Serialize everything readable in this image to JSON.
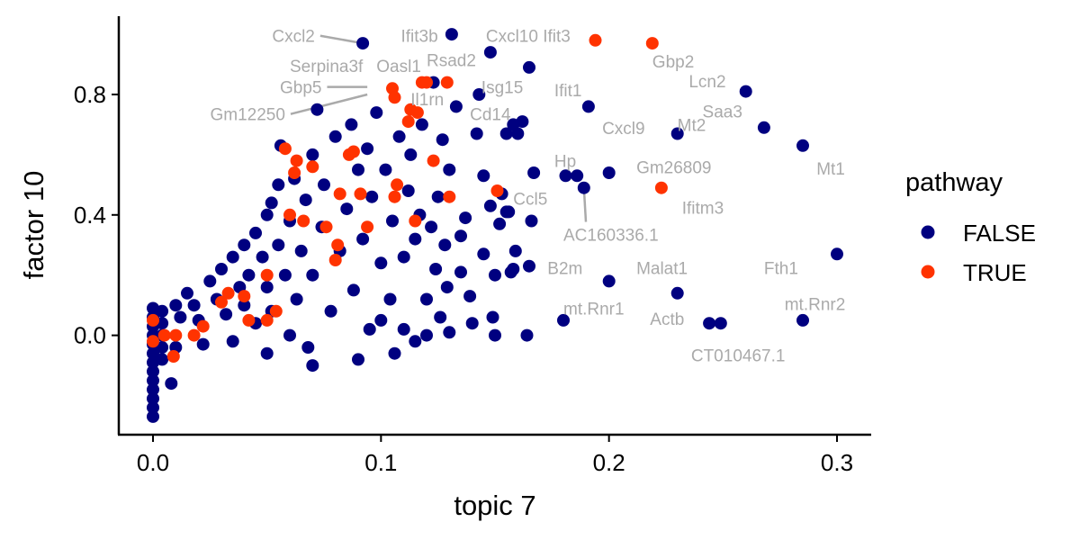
{
  "chart_data": {
    "type": "scatter",
    "xlabel": "topic 7",
    "ylabel": "factor 10",
    "xlim": [
      -0.015,
      0.315
    ],
    "ylim": [
      -0.33,
      1.06
    ],
    "x_ticks": [
      0.0,
      0.1,
      0.2,
      0.3
    ],
    "x_tick_labels": [
      "0.0",
      "0.1",
      "0.2",
      "0.3"
    ],
    "y_ticks": [
      0.0,
      0.4,
      0.8
    ],
    "y_tick_labels": [
      "0.0",
      "0.4",
      "0.8"
    ],
    "grid": false,
    "legend": {
      "title": "pathway",
      "position": "right",
      "entries": [
        {
          "label": "FALSE",
          "color": "#000080"
        },
        {
          "label": "TRUE",
          "color": "#ff3300"
        }
      ]
    },
    "series": [
      {
        "name": "FALSE",
        "color": "#000080",
        "points": [
          [
            0.0,
            0.09
          ],
          [
            0.0,
            0.06
          ],
          [
            0.0,
            0.03
          ],
          [
            0.0,
            0.0
          ],
          [
            0.0,
            -0.03
          ],
          [
            0.0,
            -0.06
          ],
          [
            0.0,
            -0.09
          ],
          [
            0.0,
            -0.12
          ],
          [
            0.0,
            -0.15
          ],
          [
            0.0,
            -0.18
          ],
          [
            0.0,
            -0.21
          ],
          [
            0.0,
            -0.24
          ],
          [
            0.0,
            -0.27
          ],
          [
            0.004,
            0.08
          ],
          [
            0.004,
            0.04
          ],
          [
            0.004,
            0.0
          ],
          [
            0.004,
            -0.04
          ],
          [
            0.004,
            -0.08
          ],
          [
            0.008,
            -0.16
          ],
          [
            0.01,
            0.1
          ],
          [
            0.01,
            -0.04
          ],
          [
            0.012,
            0.06
          ],
          [
            0.015,
            0.14
          ],
          [
            0.018,
            0.1
          ],
          [
            0.02,
            0.05
          ],
          [
            0.022,
            -0.03
          ],
          [
            0.025,
            0.18
          ],
          [
            0.028,
            0.12
          ],
          [
            0.03,
            0.22
          ],
          [
            0.032,
            0.07
          ],
          [
            0.035,
            0.26
          ],
          [
            0.035,
            -0.02
          ],
          [
            0.038,
            0.16
          ],
          [
            0.04,
            0.3
          ],
          [
            0.04,
            0.1
          ],
          [
            0.042,
            0.2
          ],
          [
            0.045,
            0.34
          ],
          [
            0.045,
            0.04
          ],
          [
            0.048,
            0.26
          ],
          [
            0.05,
            0.4
          ],
          [
            0.05,
            0.16
          ],
          [
            0.05,
            -0.06
          ],
          [
            0.052,
            0.44
          ],
          [
            0.052,
            0.08
          ],
          [
            0.055,
            0.5
          ],
          [
            0.055,
            0.3
          ],
          [
            0.056,
            0.63
          ],
          [
            0.058,
            0.2
          ],
          [
            0.06,
            0.38
          ],
          [
            0.06,
            0.0
          ],
          [
            0.062,
            0.52
          ],
          [
            0.063,
            0.12
          ],
          [
            0.065,
            0.28
          ],
          [
            0.067,
            0.45
          ],
          [
            0.068,
            -0.04
          ],
          [
            0.07,
            0.6
          ],
          [
            0.07,
            0.2
          ],
          [
            0.07,
            -0.1
          ],
          [
            0.072,
            0.75
          ],
          [
            0.074,
            0.36
          ],
          [
            0.075,
            0.5
          ],
          [
            0.078,
            0.08
          ],
          [
            0.08,
            0.66
          ],
          [
            0.082,
            0.28
          ],
          [
            0.085,
            0.42
          ],
          [
            0.087,
            0.7
          ],
          [
            0.088,
            0.15
          ],
          [
            0.09,
            0.55
          ],
          [
            0.09,
            -0.08
          ],
          [
            0.092,
            0.32
          ],
          [
            0.094,
            0.62
          ],
          [
            0.095,
            0.02
          ],
          [
            0.096,
            0.46
          ],
          [
            0.098,
            0.74
          ],
          [
            0.1,
            0.24
          ],
          [
            0.1,
            0.05
          ],
          [
            0.102,
            0.55
          ],
          [
            0.104,
            0.12
          ],
          [
            0.105,
            0.38
          ],
          [
            0.106,
            -0.06
          ],
          [
            0.108,
            0.66
          ],
          [
            0.11,
            0.26
          ],
          [
            0.11,
            0.02
          ],
          [
            0.112,
            0.48
          ],
          [
            0.113,
            0.6
          ],
          [
            0.115,
            0.32
          ],
          [
            0.115,
            -0.02
          ],
          [
            0.117,
            0.4
          ],
          [
            0.118,
            0.7
          ],
          [
            0.12,
            0.12
          ],
          [
            0.12,
            0.0
          ],
          [
            0.122,
            0.36
          ],
          [
            0.123,
            0.84
          ],
          [
            0.124,
            0.22
          ],
          [
            0.125,
            0.46
          ],
          [
            0.126,
            0.06
          ],
          [
            0.127,
            0.65
          ],
          [
            0.128,
            0.3
          ],
          [
            0.129,
            0.16
          ],
          [
            0.13,
            0.55
          ],
          [
            0.13,
            0.01
          ],
          [
            0.133,
            0.76
          ],
          [
            0.135,
            0.33
          ],
          [
            0.135,
            0.21
          ],
          [
            0.137,
            0.39
          ],
          [
            0.139,
            0.13
          ],
          [
            0.14,
            0.04
          ],
          [
            0.142,
            0.67
          ],
          [
            0.145,
            0.53
          ],
          [
            0.145,
            0.27
          ],
          [
            0.148,
            0.43
          ],
          [
            0.149,
            0.06
          ],
          [
            0.15,
            0.2
          ],
          [
            0.15,
            0.0
          ],
          [
            0.152,
            0.37
          ],
          [
            0.153,
            0.47
          ],
          [
            0.155,
            0.67
          ],
          [
            0.156,
            0.41
          ],
          [
            0.157,
            0.21
          ],
          [
            0.158,
            0.7
          ],
          [
            0.159,
            0.28
          ],
          [
            0.16,
            0.67
          ],
          [
            0.162,
            0.71
          ],
          [
            0.164,
            0.0
          ],
          [
            0.165,
            0.23
          ],
          [
            0.166,
            0.38
          ],
          [
            0.167,
            0.54
          ],
          [
            0.092,
            0.97
          ],
          [
            0.131,
            1.0
          ],
          [
            0.148,
            0.94
          ],
          [
            0.165,
            0.89
          ],
          [
            0.143,
            0.8
          ],
          [
            0.191,
            0.76
          ],
          [
            0.186,
            0.53
          ],
          [
            0.181,
            0.53
          ],
          [
            0.189,
            0.49
          ],
          [
            0.2,
            0.54
          ],
          [
            0.18,
            0.05
          ],
          [
            0.2,
            0.18
          ],
          [
            0.23,
            0.14
          ],
          [
            0.23,
            0.67
          ],
          [
            0.26,
            0.81
          ],
          [
            0.268,
            0.69
          ],
          [
            0.285,
            0.63
          ],
          [
            0.3,
            0.27
          ],
          [
            0.285,
            0.05
          ],
          [
            0.244,
            0.04
          ],
          [
            0.249,
            0.04
          ],
          [
            0.155,
            0.41
          ],
          [
            0.158,
            0.22
          ]
        ]
      },
      {
        "name": "TRUE",
        "color": "#ff3300",
        "points": [
          [
            0.0,
            0.05
          ],
          [
            0.0,
            -0.02
          ],
          [
            0.005,
            0.0
          ],
          [
            0.009,
            -0.07
          ],
          [
            0.01,
            0.0
          ],
          [
            0.018,
            0.0
          ],
          [
            0.022,
            0.03
          ],
          [
            0.03,
            0.11
          ],
          [
            0.033,
            0.14
          ],
          [
            0.04,
            0.13
          ],
          [
            0.042,
            0.05
          ],
          [
            0.05,
            0.05
          ],
          [
            0.05,
            0.2
          ],
          [
            0.054,
            0.08
          ],
          [
            0.058,
            0.62
          ],
          [
            0.06,
            0.4
          ],
          [
            0.062,
            0.54
          ],
          [
            0.063,
            0.58
          ],
          [
            0.066,
            0.38
          ],
          [
            0.07,
            0.56
          ],
          [
            0.076,
            0.36
          ],
          [
            0.08,
            0.25
          ],
          [
            0.081,
            0.3
          ],
          [
            0.082,
            0.47
          ],
          [
            0.086,
            0.6
          ],
          [
            0.088,
            0.61
          ],
          [
            0.091,
            0.47
          ],
          [
            0.094,
            0.36
          ],
          [
            0.105,
            0.82
          ],
          [
            0.106,
            0.79
          ],
          [
            0.106,
            0.46
          ],
          [
            0.107,
            0.5
          ],
          [
            0.112,
            0.71
          ],
          [
            0.113,
            0.75
          ],
          [
            0.115,
            0.38
          ],
          [
            0.116,
            0.74
          ],
          [
            0.118,
            0.84
          ],
          [
            0.12,
            0.84
          ],
          [
            0.123,
            0.58
          ],
          [
            0.129,
            0.84
          ],
          [
            0.13,
            0.46
          ],
          [
            0.151,
            0.48
          ],
          [
            0.194,
            0.98
          ],
          [
            0.219,
            0.97
          ],
          [
            0.223,
            0.49
          ]
        ]
      }
    ],
    "labels": [
      {
        "text": "Cxcl2",
        "tx": 0.071,
        "ty": 0.995,
        "px": 0.092,
        "py": 0.97,
        "anchor": "end",
        "leader": true
      },
      {
        "text": "Ifit3b",
        "tx": 0.125,
        "ty": 0.995,
        "anchor": "end",
        "leader": false
      },
      {
        "text": "Cxcl10",
        "tx": 0.146,
        "ty": 0.995,
        "anchor": "start",
        "leader": false
      },
      {
        "text": "Ifit3",
        "tx": 0.171,
        "ty": 0.995,
        "anchor": "start",
        "leader": false
      },
      {
        "text": "Rsad2",
        "tx": 0.12,
        "ty": 0.915,
        "anchor": "start",
        "leader": false
      },
      {
        "text": "Serpina3f",
        "tx": 0.06,
        "ty": 0.895,
        "anchor": "start",
        "leader": false
      },
      {
        "text": "Oasl1",
        "tx": 0.098,
        "ty": 0.895,
        "anchor": "start",
        "leader": false
      },
      {
        "text": "Gbp2",
        "tx": 0.219,
        "ty": 0.91,
        "anchor": "start",
        "leader": false
      },
      {
        "text": "Lcn2",
        "tx": 0.235,
        "ty": 0.845,
        "anchor": "start",
        "leader": false
      },
      {
        "text": "Gbp5",
        "tx": 0.074,
        "ty": 0.825,
        "px": 0.094,
        "py": 0.825,
        "anchor": "end",
        "leader": true
      },
      {
        "text": "Isg15",
        "tx": 0.144,
        "ty": 0.825,
        "anchor": "start",
        "leader": false
      },
      {
        "text": "Ifit1",
        "tx": 0.176,
        "ty": 0.815,
        "anchor": "start",
        "leader": false
      },
      {
        "text": "Il1rn",
        "tx": 0.113,
        "ty": 0.785,
        "anchor": "start",
        "leader": false
      },
      {
        "text": "Gm12250",
        "tx": 0.058,
        "ty": 0.735,
        "px": 0.094,
        "py": 0.8,
        "anchor": "end",
        "leader": true
      },
      {
        "text": "Cd14",
        "tx": 0.139,
        "ty": 0.735,
        "anchor": "start",
        "leader": false
      },
      {
        "text": "Saa3",
        "tx": 0.241,
        "ty": 0.745,
        "anchor": "start",
        "leader": false
      },
      {
        "text": "Mt2",
        "tx": 0.23,
        "ty": 0.7,
        "anchor": "start",
        "leader": false
      },
      {
        "text": "Cxcl9",
        "tx": 0.197,
        "ty": 0.69,
        "anchor": "start",
        "leader": false
      },
      {
        "text": "Hp",
        "tx": 0.176,
        "ty": 0.58,
        "anchor": "start",
        "leader": false
      },
      {
        "text": "Gm26809",
        "tx": 0.212,
        "ty": 0.56,
        "anchor": "start",
        "leader": false
      },
      {
        "text": "Mt1",
        "tx": 0.291,
        "ty": 0.555,
        "anchor": "start",
        "leader": false
      },
      {
        "text": "Ccl5",
        "tx": 0.158,
        "ty": 0.455,
        "anchor": "start",
        "leader": false
      },
      {
        "text": "Ifitm3",
        "tx": 0.232,
        "ty": 0.425,
        "anchor": "start",
        "leader": false
      },
      {
        "text": "AC160336.1",
        "tx": 0.18,
        "ty": 0.335,
        "px": 0.189,
        "py": 0.49,
        "anchor": "start",
        "leader": true
      },
      {
        "text": "Fth1",
        "tx": 0.268,
        "ty": 0.225,
        "anchor": "start",
        "leader": false
      },
      {
        "text": "B2m",
        "tx": 0.173,
        "ty": 0.225,
        "anchor": "start",
        "leader": false
      },
      {
        "text": "Malat1",
        "tx": 0.212,
        "ty": 0.225,
        "anchor": "start",
        "leader": false
      },
      {
        "text": "mt.Rnr1",
        "tx": 0.18,
        "ty": 0.09,
        "anchor": "start",
        "leader": false
      },
      {
        "text": "mt.Rnr2",
        "tx": 0.277,
        "ty": 0.105,
        "anchor": "start",
        "leader": false
      },
      {
        "text": "Actb",
        "tx": 0.218,
        "ty": 0.055,
        "anchor": "start",
        "leader": false
      },
      {
        "text": "CT010467.1",
        "tx": 0.236,
        "ty": -0.065,
        "anchor": "start",
        "leader": false
      }
    ]
  }
}
